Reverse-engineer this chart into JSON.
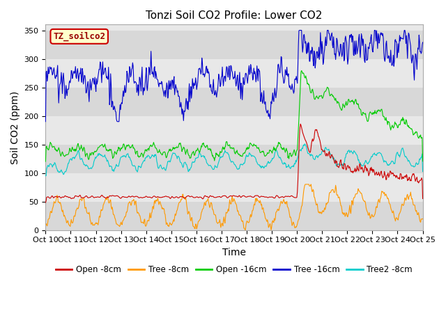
{
  "title": "Tonzi Soil CO2 Profile: Lower CO2",
  "xlabel": "Time",
  "ylabel": "Soil CO2 (ppm)",
  "legend_label": "TZ_soilco2",
  "ylim": [
    0,
    360
  ],
  "yticks": [
    0,
    50,
    100,
    150,
    200,
    250,
    300,
    350
  ],
  "series_labels": [
    "Open -8cm",
    "Tree -8cm",
    "Open -16cm",
    "Tree -16cm",
    "Tree2 -8cm"
  ],
  "series_colors": [
    "#cc0000",
    "#ff9900",
    "#00cc00",
    "#0000cc",
    "#00cccc"
  ],
  "xtick_labels": [
    "Oct 10",
    "Oct 11",
    "Oct 12",
    "Oct 13",
    "Oct 14",
    "Oct 15",
    "Oct 16",
    "Oct 17",
    "Oct 18",
    "Oct 19",
    "Oct 20",
    "Oct 21",
    "Oct 22",
    "Oct 23",
    "Oct 24",
    "Oct 25"
  ],
  "background_color": "#ffffff",
  "plot_bg_color": "#e8e8e8",
  "band_colors": [
    "#d8d8d8",
    "#e8e8e8"
  ],
  "legend_box_color": "#ffffcc",
  "legend_box_edge": "#cc0000",
  "legend_box_text_color": "#990000"
}
